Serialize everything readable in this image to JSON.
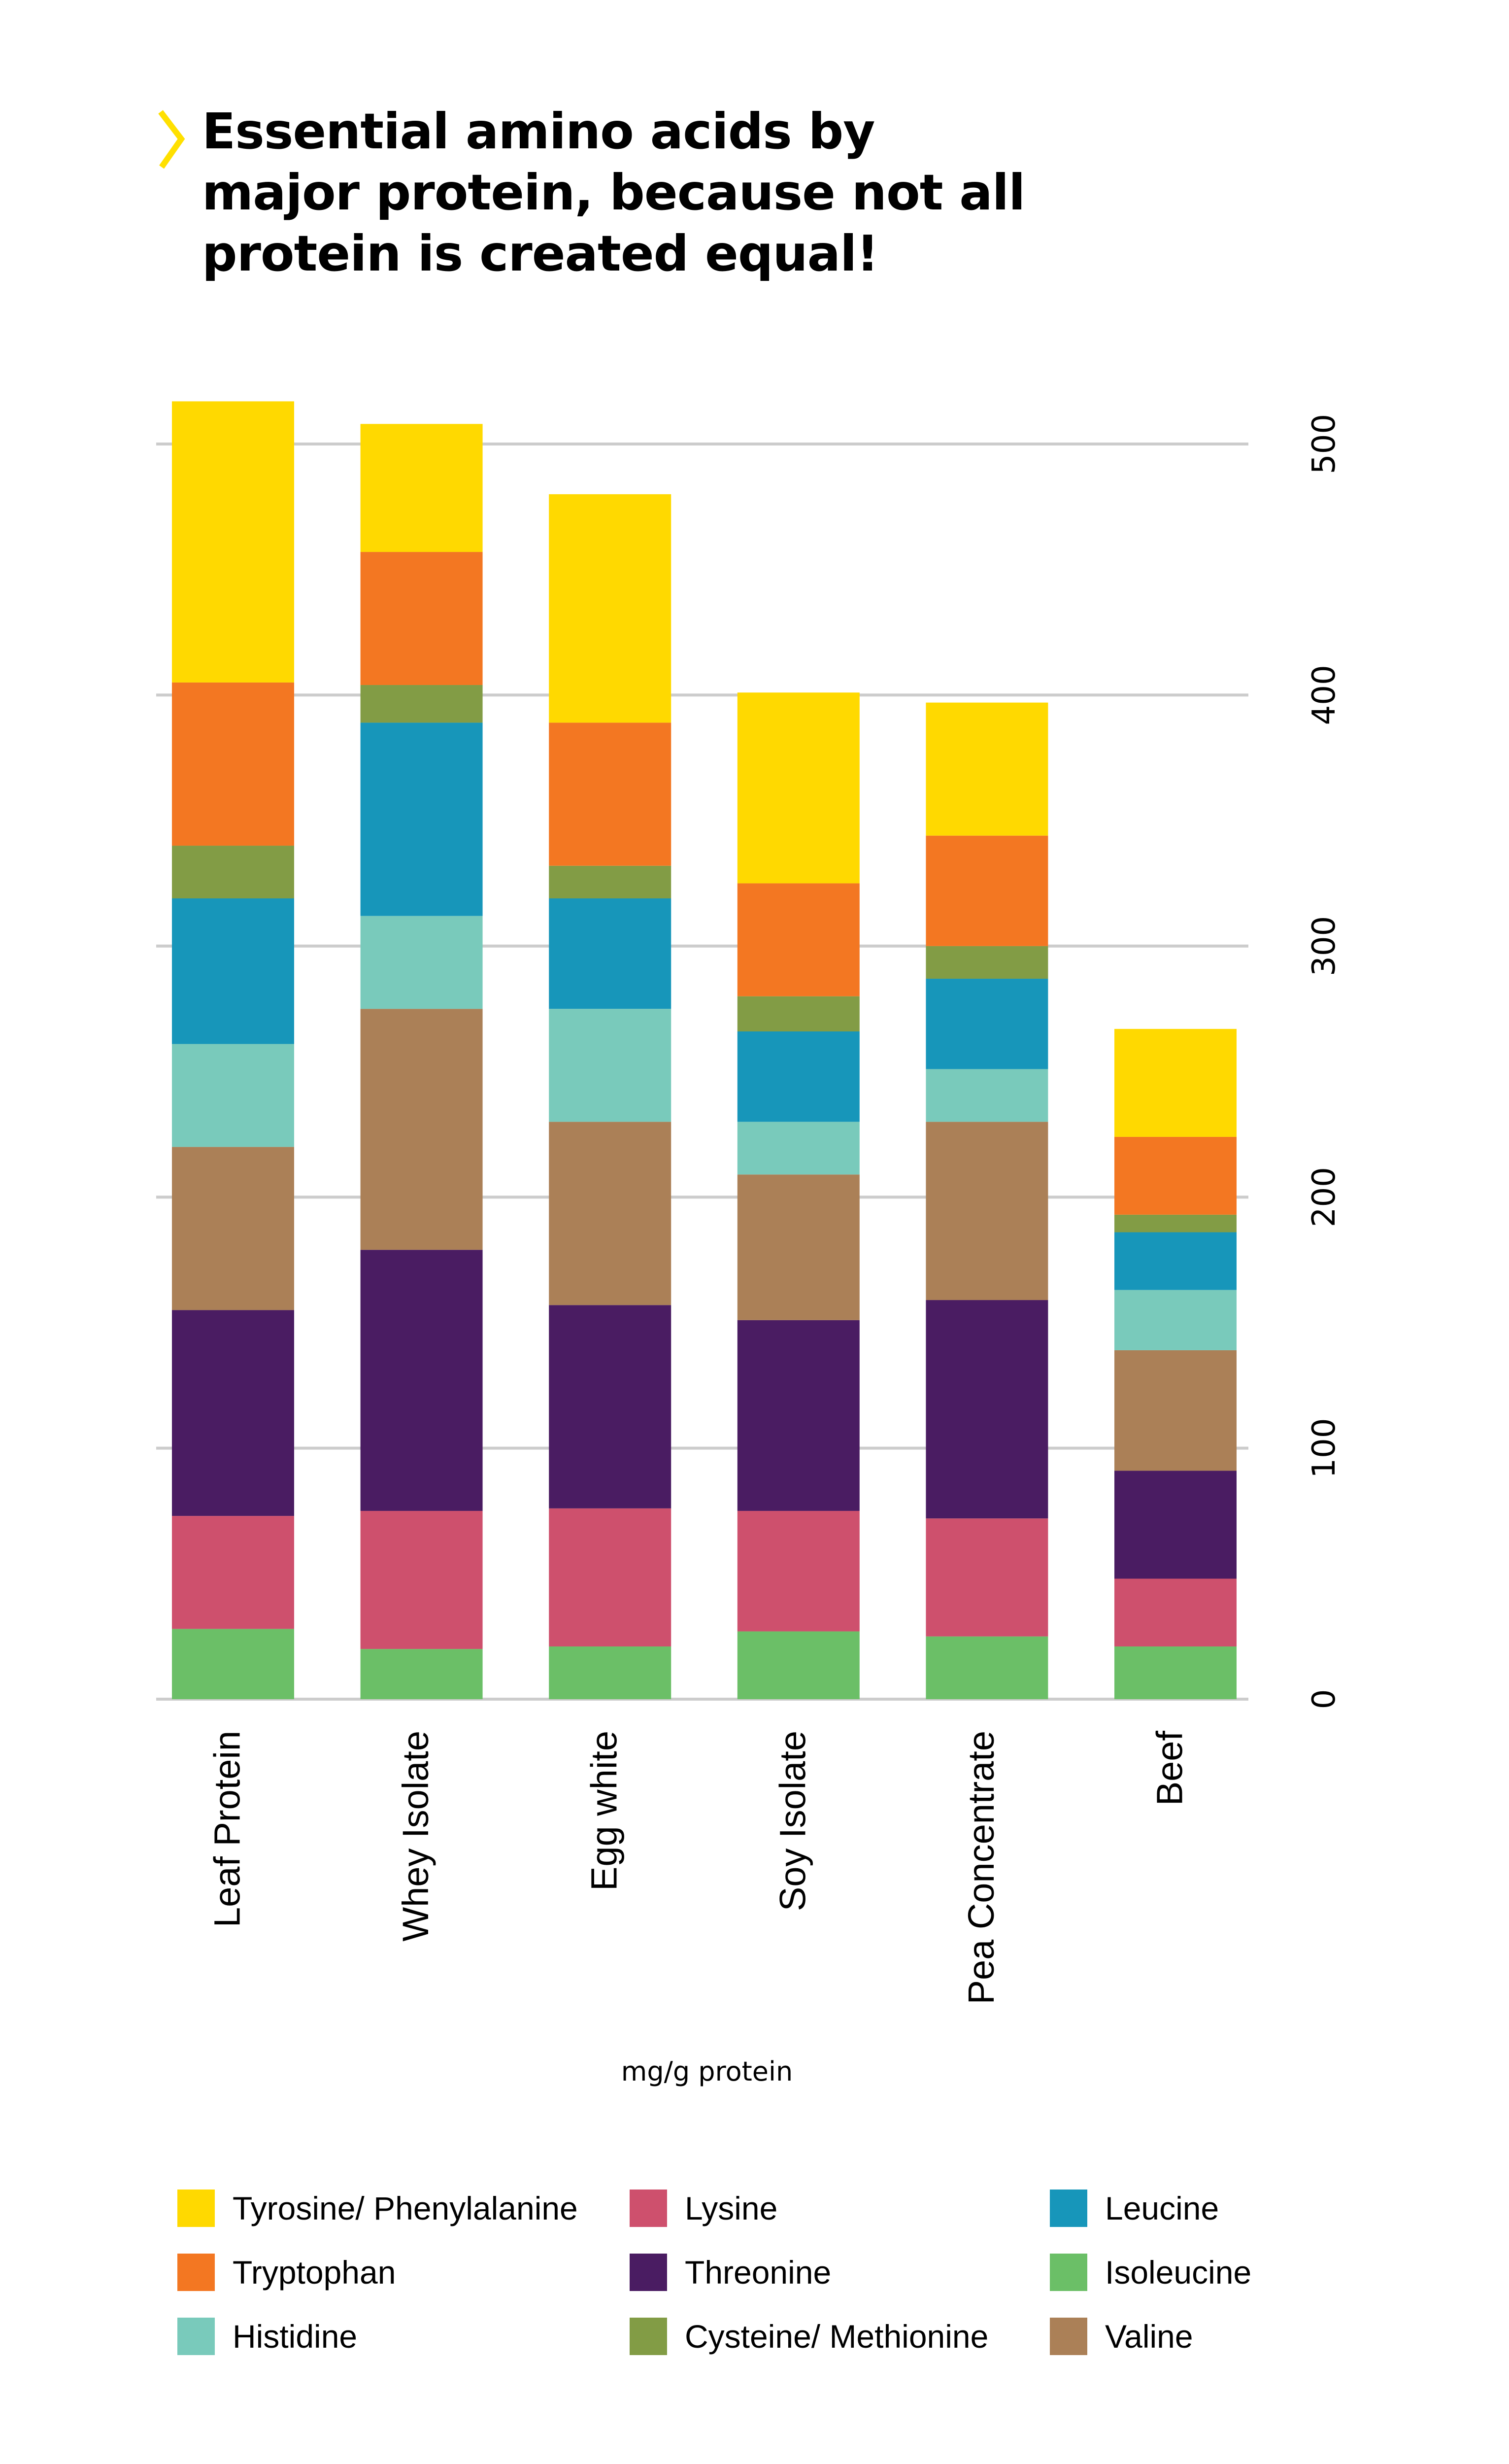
{
  "header": {
    "title": "Essential amino acids by\nmajor protein,  because not all\nprotein is created equal!",
    "accent_color": "#FFE000",
    "chevron_icon": "chevron-right-icon"
  },
  "chart_data": {
    "type": "bar",
    "stacked": true,
    "orientation": "vertical",
    "title": "Essential amino acids by major protein, because not all protein is created equal!",
    "xlabel": "mg/g protein",
    "ylabel": "",
    "ylim": [
      0,
      500
    ],
    "yticks": [
      0,
      100,
      200,
      300,
      400,
      500
    ],
    "ytick_labels": [
      "0",
      "100",
      "200",
      "300",
      "400",
      "500"
    ],
    "y_axis_side": "right",
    "grid": true,
    "categories": [
      "Leaf Protein",
      "Whey Isolate",
      "Egg white",
      "Soy Isolate",
      "Pea Concentrate",
      "Beef"
    ],
    "series": [
      {
        "name": "Isoleucine",
        "color": "#6BBF67",
        "values": [
          28,
          20,
          21,
          27,
          25,
          21
        ]
      },
      {
        "name": "Lysine",
        "color": "#CE506D",
        "values": [
          45,
          55,
          55,
          48,
          47,
          27
        ]
      },
      {
        "name": "Threonine",
        "color": "#4A1C62",
        "values": [
          82,
          104,
          81,
          76,
          87,
          43
        ]
      },
      {
        "name": "Valine",
        "color": "#AB8057",
        "values": [
          65,
          96,
          73,
          58,
          71,
          48
        ]
      },
      {
        "name": "Histidine",
        "color": "#79CABB",
        "values": [
          41,
          37,
          45,
          21,
          21,
          24
        ]
      },
      {
        "name": "Leucine",
        "color": "#1796BA",
        "values": [
          58,
          77,
          44,
          36,
          36,
          23
        ]
      },
      {
        "name": "Cysteine/ Methionine",
        "color": "#829C45",
        "values": [
          21,
          15,
          13,
          14,
          13,
          7
        ]
      },
      {
        "name": "Tryptophan",
        "color": "#F37722",
        "values": [
          65,
          53,
          57,
          45,
          44,
          31
        ]
      },
      {
        "name": "Tyrosine/ Phenylalanine",
        "color": "#FFD900",
        "values": [
          112,
          51,
          91,
          76,
          53,
          43
        ]
      }
    ],
    "legend": {
      "placement": "bottom",
      "columns": 3,
      "entries": [
        {
          "label": "Tyrosine/ Phenylalanine",
          "color": "#FFD900"
        },
        {
          "label": "Lysine",
          "color": "#CE506D"
        },
        {
          "label": "Leucine",
          "color": "#1796BA"
        },
        {
          "label": "Tryptophan",
          "color": "#F37722"
        },
        {
          "label": "Threonine",
          "color": "#4A1C62"
        },
        {
          "label": "Isoleucine",
          "color": "#6BBF67"
        },
        {
          "label": "Histidine",
          "color": "#79CABB"
        },
        {
          "label": "Cysteine/ Methionine",
          "color": "#829C45"
        },
        {
          "label": "Valine",
          "color": "#AB8057"
        }
      ]
    },
    "grid_color": "#CCCCCC"
  }
}
